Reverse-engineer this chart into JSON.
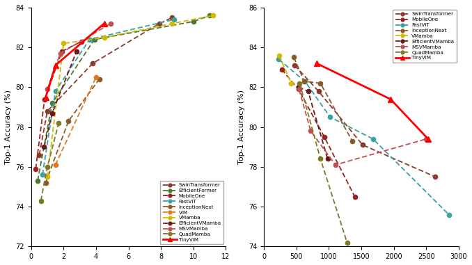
{
  "left": {
    "ylabel": "Top-1 Accuracy (%)",
    "xlim": [
      0,
      12
    ],
    "ylim": [
      72,
      84
    ],
    "xticks": [
      0,
      2,
      4,
      6,
      8,
      10,
      12
    ],
    "yticks": [
      72,
      74,
      76,
      78,
      80,
      82,
      84
    ],
    "series": {
      "SwinTransformer": {
        "x": [
          0.5,
          1.0,
          3.8,
          7.9,
          8.7
        ],
        "y": [
          76.6,
          78.8,
          81.2,
          83.2,
          83.5
        ],
        "color": "#8B3A2A",
        "linestyle": "--",
        "marker": "o",
        "lw": 1.3
      },
      "EfficientFormer": {
        "x": [
          0.4,
          1.3,
          3.9,
          10.0,
          11.0
        ],
        "y": [
          75.3,
          79.2,
          82.4,
          83.3,
          83.6
        ],
        "color": "#4A7A30",
        "linestyle": "--",
        "marker": "o",
        "lw": 1.3
      },
      "MobileOne": {
        "x": [
          0.28,
          0.83,
          1.9,
          3.1
        ],
        "y": [
          75.9,
          79.4,
          81.8,
          82.3
        ],
        "color": "#9B2020",
        "linestyle": "--",
        "marker": "o",
        "lw": 1.3
      },
      "FastViT": {
        "x": [
          0.7,
          1.5,
          3.6,
          8.8
        ],
        "y": [
          75.6,
          79.8,
          82.4,
          83.4
        ],
        "color": "#3AA0A0",
        "linestyle": "--",
        "marker": "o",
        "lw": 1.3
      },
      "InceptionNext": {
        "x": [
          0.9,
          2.3,
          4.2
        ],
        "y": [
          75.2,
          78.3,
          80.4
        ],
        "color": "#8B5A2B",
        "linestyle": "--",
        "marker": "o",
        "lw": 1.3
      },
      "ViM": {
        "x": [
          1.5,
          4.0
        ],
        "y": [
          76.1,
          80.5
        ],
        "color": "#E07820",
        "linestyle": "--",
        "marker": "o",
        "lw": 1.3
      },
      "VMamba": {
        "x": [
          1.0,
          2.0,
          4.5,
          8.7,
          11.2
        ],
        "y": [
          75.5,
          82.2,
          82.5,
          83.2,
          83.6
        ],
        "color": "#D4B800",
        "linestyle": "--",
        "marker": "o",
        "lw": 1.3
      },
      "EfficientVMamba": {
        "x": [
          0.8,
          1.3,
          2.8
        ],
        "y": [
          77.0,
          78.7,
          81.8
        ],
        "color": "#6B1A1A",
        "linestyle": "--",
        "marker": "o",
        "lw": 1.3
      },
      "MSVMamba": {
        "x": [
          1.0,
          1.8,
          4.9
        ],
        "y": [
          79.9,
          81.7,
          83.2
        ],
        "color": "#C05050",
        "linestyle": "--",
        "marker": "o",
        "lw": 1.3
      },
      "QuadMamba": {
        "x": [
          0.6,
          1.0,
          1.7
        ],
        "y": [
          74.3,
          76.0,
          78.2
        ],
        "color": "#7A7A20",
        "linestyle": "--",
        "marker": "o",
        "lw": 1.3
      },
      "TinyViM": {
        "x": [
          0.9,
          1.5,
          4.5
        ],
        "y": [
          79.5,
          81.1,
          83.2
        ],
        "color": "#FF0000",
        "linestyle": "-",
        "marker": "^",
        "lw": 2.0
      }
    },
    "legend_order": [
      "SwinTransformer",
      "EfficientFormer",
      "MobileOne",
      "FastViT",
      "InceptionNext",
      "ViM",
      "VMamba",
      "EfficientVMamba",
      "MSVMamba",
      "QuadMamba",
      "TinyViM"
    ],
    "legend_loc": "lower right",
    "legend_bbox": null
  },
  "right": {
    "ylabel": "Top-1 Accuracy (%)",
    "xlim": [
      0,
      3000
    ],
    "ylim": [
      74,
      86
    ],
    "xticks": [
      0,
      500,
      1000,
      1500,
      2000,
      2500,
      3000
    ],
    "yticks": [
      74,
      76,
      78,
      80,
      82,
      84,
      86
    ],
    "series": {
      "SwinTransformer": {
        "x": [
          472,
          840,
          1520,
          2640
        ],
        "y": [
          83.1,
          81.8,
          79.1,
          77.5
        ],
        "color": "#8B3A2A",
        "linestyle": "--",
        "marker": "o",
        "lw": 1.3
      },
      "MobileOne": {
        "x": [
          272,
          530,
          930,
          1400
        ],
        "y": [
          82.9,
          81.9,
          79.5,
          76.5
        ],
        "color": "#9B2020",
        "linestyle": "--",
        "marker": "o",
        "lw": 1.3
      },
      "FastViT": {
        "x": [
          227,
          630,
          1020,
          1680,
          2850
        ],
        "y": [
          83.4,
          82.3,
          80.5,
          79.4,
          75.6
        ],
        "color": "#3AA0A0",
        "linestyle": "--",
        "marker": "o",
        "lw": 1.3
      },
      "InceptionNext": {
        "x": [
          460,
          620,
          870,
          1360
        ],
        "y": [
          83.5,
          82.3,
          82.2,
          79.3
        ],
        "color": "#8B5A2B",
        "linestyle": "--",
        "marker": "o",
        "lw": 1.3
      },
      "VMamba": {
        "x": [
          232,
          420
        ],
        "y": [
          83.6,
          82.2
        ],
        "color": "#D4B800",
        "linestyle": "--",
        "marker": "o",
        "lw": 1.3
      },
      "EfficientVMamba": {
        "x": [
          530,
          680,
          980
        ],
        "y": [
          82.0,
          81.8,
          78.4
        ],
        "color": "#6B1A1A",
        "linestyle": "--",
        "marker": "o",
        "lw": 1.3
      },
      "MSVMamba": {
        "x": [
          540,
          720,
          1100,
          2500
        ],
        "y": [
          81.9,
          79.8,
          78.1,
          79.4
        ],
        "color": "#C05050",
        "linestyle": "--",
        "marker": "o",
        "lw": 1.3
      },
      "QuadMamba": {
        "x": [
          550,
          870,
          1280
        ],
        "y": [
          82.2,
          78.4,
          74.2
        ],
        "color": "#7A7A20",
        "linestyle": "--",
        "marker": "o",
        "lw": 1.3
      },
      "TinyViM": {
        "x": [
          810,
          1950,
          2530
        ],
        "y": [
          83.2,
          81.4,
          79.4
        ],
        "color": "#FF0000",
        "linestyle": "-",
        "marker": "^",
        "lw": 2.0
      }
    },
    "legend_order": [
      "SwinTransformer",
      "MobileOne",
      "FastViT",
      "InceptionNext",
      "VMamba",
      "EfficientVMamba",
      "MSVMamba",
      "QuadMamba",
      "TinyViM"
    ],
    "legend_loc": "upper right",
    "legend_bbox": null
  }
}
